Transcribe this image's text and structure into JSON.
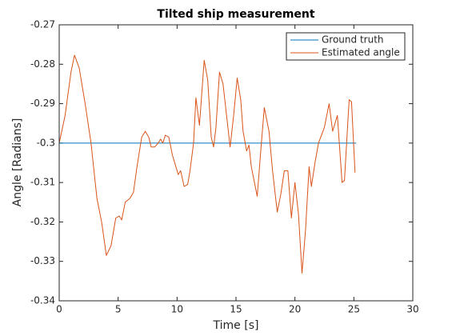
{
  "chart_data": {
    "type": "line",
    "title": "Tilted ship measurement",
    "xlabel": "Time [s]",
    "ylabel": "Angle [Radians]",
    "xlim": [
      0,
      30
    ],
    "ylim": [
      -0.34,
      -0.27
    ],
    "xticks": [
      0,
      5,
      10,
      15,
      20,
      25,
      30
    ],
    "yticks": [
      -0.34,
      -0.33,
      -0.32,
      -0.31,
      -0.3,
      -0.29,
      -0.28,
      -0.27
    ],
    "legend": "top-right",
    "series": [
      {
        "name": "Ground truth",
        "color": "#0072BD",
        "x": [
          0,
          25.2
        ],
        "values": [
          -0.3,
          -0.3
        ]
      },
      {
        "name": "Estimated angle",
        "color": "#D95319",
        "x": [
          0,
          0.5,
          1.0,
          1.3,
          1.7,
          2.2,
          2.7,
          3.2,
          3.6,
          4.0,
          4.4,
          4.8,
          5.1,
          5.3,
          5.6,
          6.0,
          6.3,
          6.6,
          7.0,
          7.3,
          7.6,
          7.8,
          8.1,
          8.4,
          8.6,
          8.8,
          9.0,
          9.3,
          9.6,
          9.9,
          10.1,
          10.3,
          10.6,
          10.9,
          11.1,
          11.4,
          11.6,
          11.9,
          12.3,
          12.6,
          12.9,
          13.1,
          13.3,
          13.6,
          13.9,
          14.2,
          14.5,
          14.8,
          15.1,
          15.4,
          15.6,
          15.9,
          16.1,
          16.3,
          16.8,
          17.1,
          17.4,
          17.8,
          18.1,
          18.5,
          18.8,
          19.1,
          19.4,
          19.7,
          20.0,
          20.3,
          20.6,
          20.9,
          21.2,
          21.4,
          21.7,
          22.0,
          22.5,
          22.9,
          23.2,
          23.6,
          24.0,
          24.2,
          24.6,
          24.8,
          25.1
        ],
        "values": [
          -0.3,
          -0.293,
          -0.282,
          -0.2777,
          -0.281,
          -0.29,
          -0.3,
          -0.314,
          -0.32,
          -0.3285,
          -0.326,
          -0.319,
          -0.3185,
          -0.3195,
          -0.315,
          -0.314,
          -0.3125,
          -0.306,
          -0.2985,
          -0.297,
          -0.2985,
          -0.301,
          -0.301,
          -0.3,
          -0.299,
          -0.3,
          -0.298,
          -0.2985,
          -0.303,
          -0.306,
          -0.308,
          -0.307,
          -0.311,
          -0.3105,
          -0.307,
          -0.3,
          -0.2885,
          -0.2955,
          -0.279,
          -0.284,
          -0.2985,
          -0.301,
          -0.296,
          -0.282,
          -0.285,
          -0.293,
          -0.301,
          -0.293,
          -0.2835,
          -0.289,
          -0.297,
          -0.302,
          -0.3005,
          -0.306,
          -0.3135,
          -0.302,
          -0.291,
          -0.297,
          -0.307,
          -0.3175,
          -0.313,
          -0.307,
          -0.307,
          -0.319,
          -0.31,
          -0.318,
          -0.333,
          -0.322,
          -0.306,
          -0.311,
          -0.305,
          -0.3,
          -0.296,
          -0.29,
          -0.297,
          -0.293,
          -0.31,
          -0.3095,
          -0.289,
          -0.2895,
          -0.3075
        ]
      }
    ]
  }
}
